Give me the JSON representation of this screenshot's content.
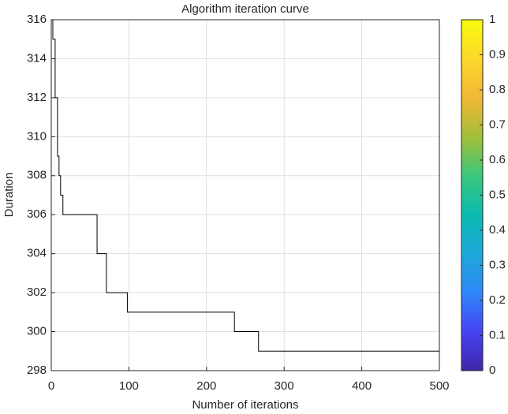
{
  "chart_data": {
    "type": "line",
    "title": "Algorithm iteration curve",
    "x_label": "Number of iterations",
    "y_label": "Duration",
    "x": [
      0,
      2,
      2,
      5,
      5,
      8,
      8,
      10,
      10,
      12,
      12,
      15,
      15,
      59,
      59,
      71,
      71,
      98,
      98,
      236,
      236,
      267,
      267,
      500
    ],
    "series": [
      {
        "color": "#000000",
        "values": [
          316,
          316,
          315,
          315,
          312,
          312,
          309,
          309,
          308,
          308,
          307,
          307,
          306,
          306,
          304,
          304,
          302,
          302,
          301,
          301,
          300,
          300,
          299,
          299
        ]
      }
    ],
    "xlim": [
      0,
      500
    ],
    "xticks": [
      0,
      100,
      200,
      300,
      400,
      500
    ],
    "ylim": [
      298,
      316
    ],
    "yticks": [
      298,
      300,
      302,
      304,
      306,
      308,
      310,
      312,
      314,
      316
    ],
    "grid": true,
    "colorbar": {
      "clim": [
        0,
        1
      ],
      "ticks": [
        0,
        0.1,
        0.2,
        0.3,
        0.4,
        0.5,
        0.6,
        0.7,
        0.8,
        0.9,
        1
      ],
      "colormap": [
        "#3e26a8",
        "#4743f3",
        "#2e87f7",
        "#1ea9db",
        "#0cbbb0",
        "#3bc77d",
        "#a2bf38",
        "#f2b737",
        "#fbd82a",
        "#f9fb0e"
      ]
    }
  }
}
